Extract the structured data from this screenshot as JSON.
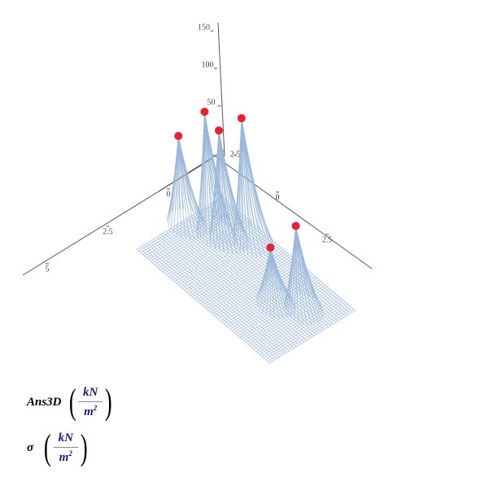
{
  "chart_data": {
    "type": "surface3d",
    "xticks": [
      0,
      2.5,
      5
    ],
    "yticks": [
      0,
      2.5
    ],
    "back_ticks": [
      2.5
    ],
    "zticks": [
      50,
      100,
      150
    ],
    "series": [
      {
        "name": "Ans3D",
        "color": "#9bb8d8",
        "unit": {
          "num": "kN",
          "den": "m",
          "exp": "2"
        }
      },
      {
        "name": "σ",
        "color": "#e8202f",
        "unit": {
          "num": "kN",
          "den": "m",
          "exp": "2"
        },
        "x": [
          1.6,
          1.2,
          1.0,
          0.5,
          1.7,
          1.2
        ],
        "y": [
          0.2,
          1.2,
          1.6,
          2.2,
          4.8,
          5.6
        ],
        "z": [
          118,
          165,
          145,
          165,
          75,
          112
        ]
      }
    ]
  }
}
